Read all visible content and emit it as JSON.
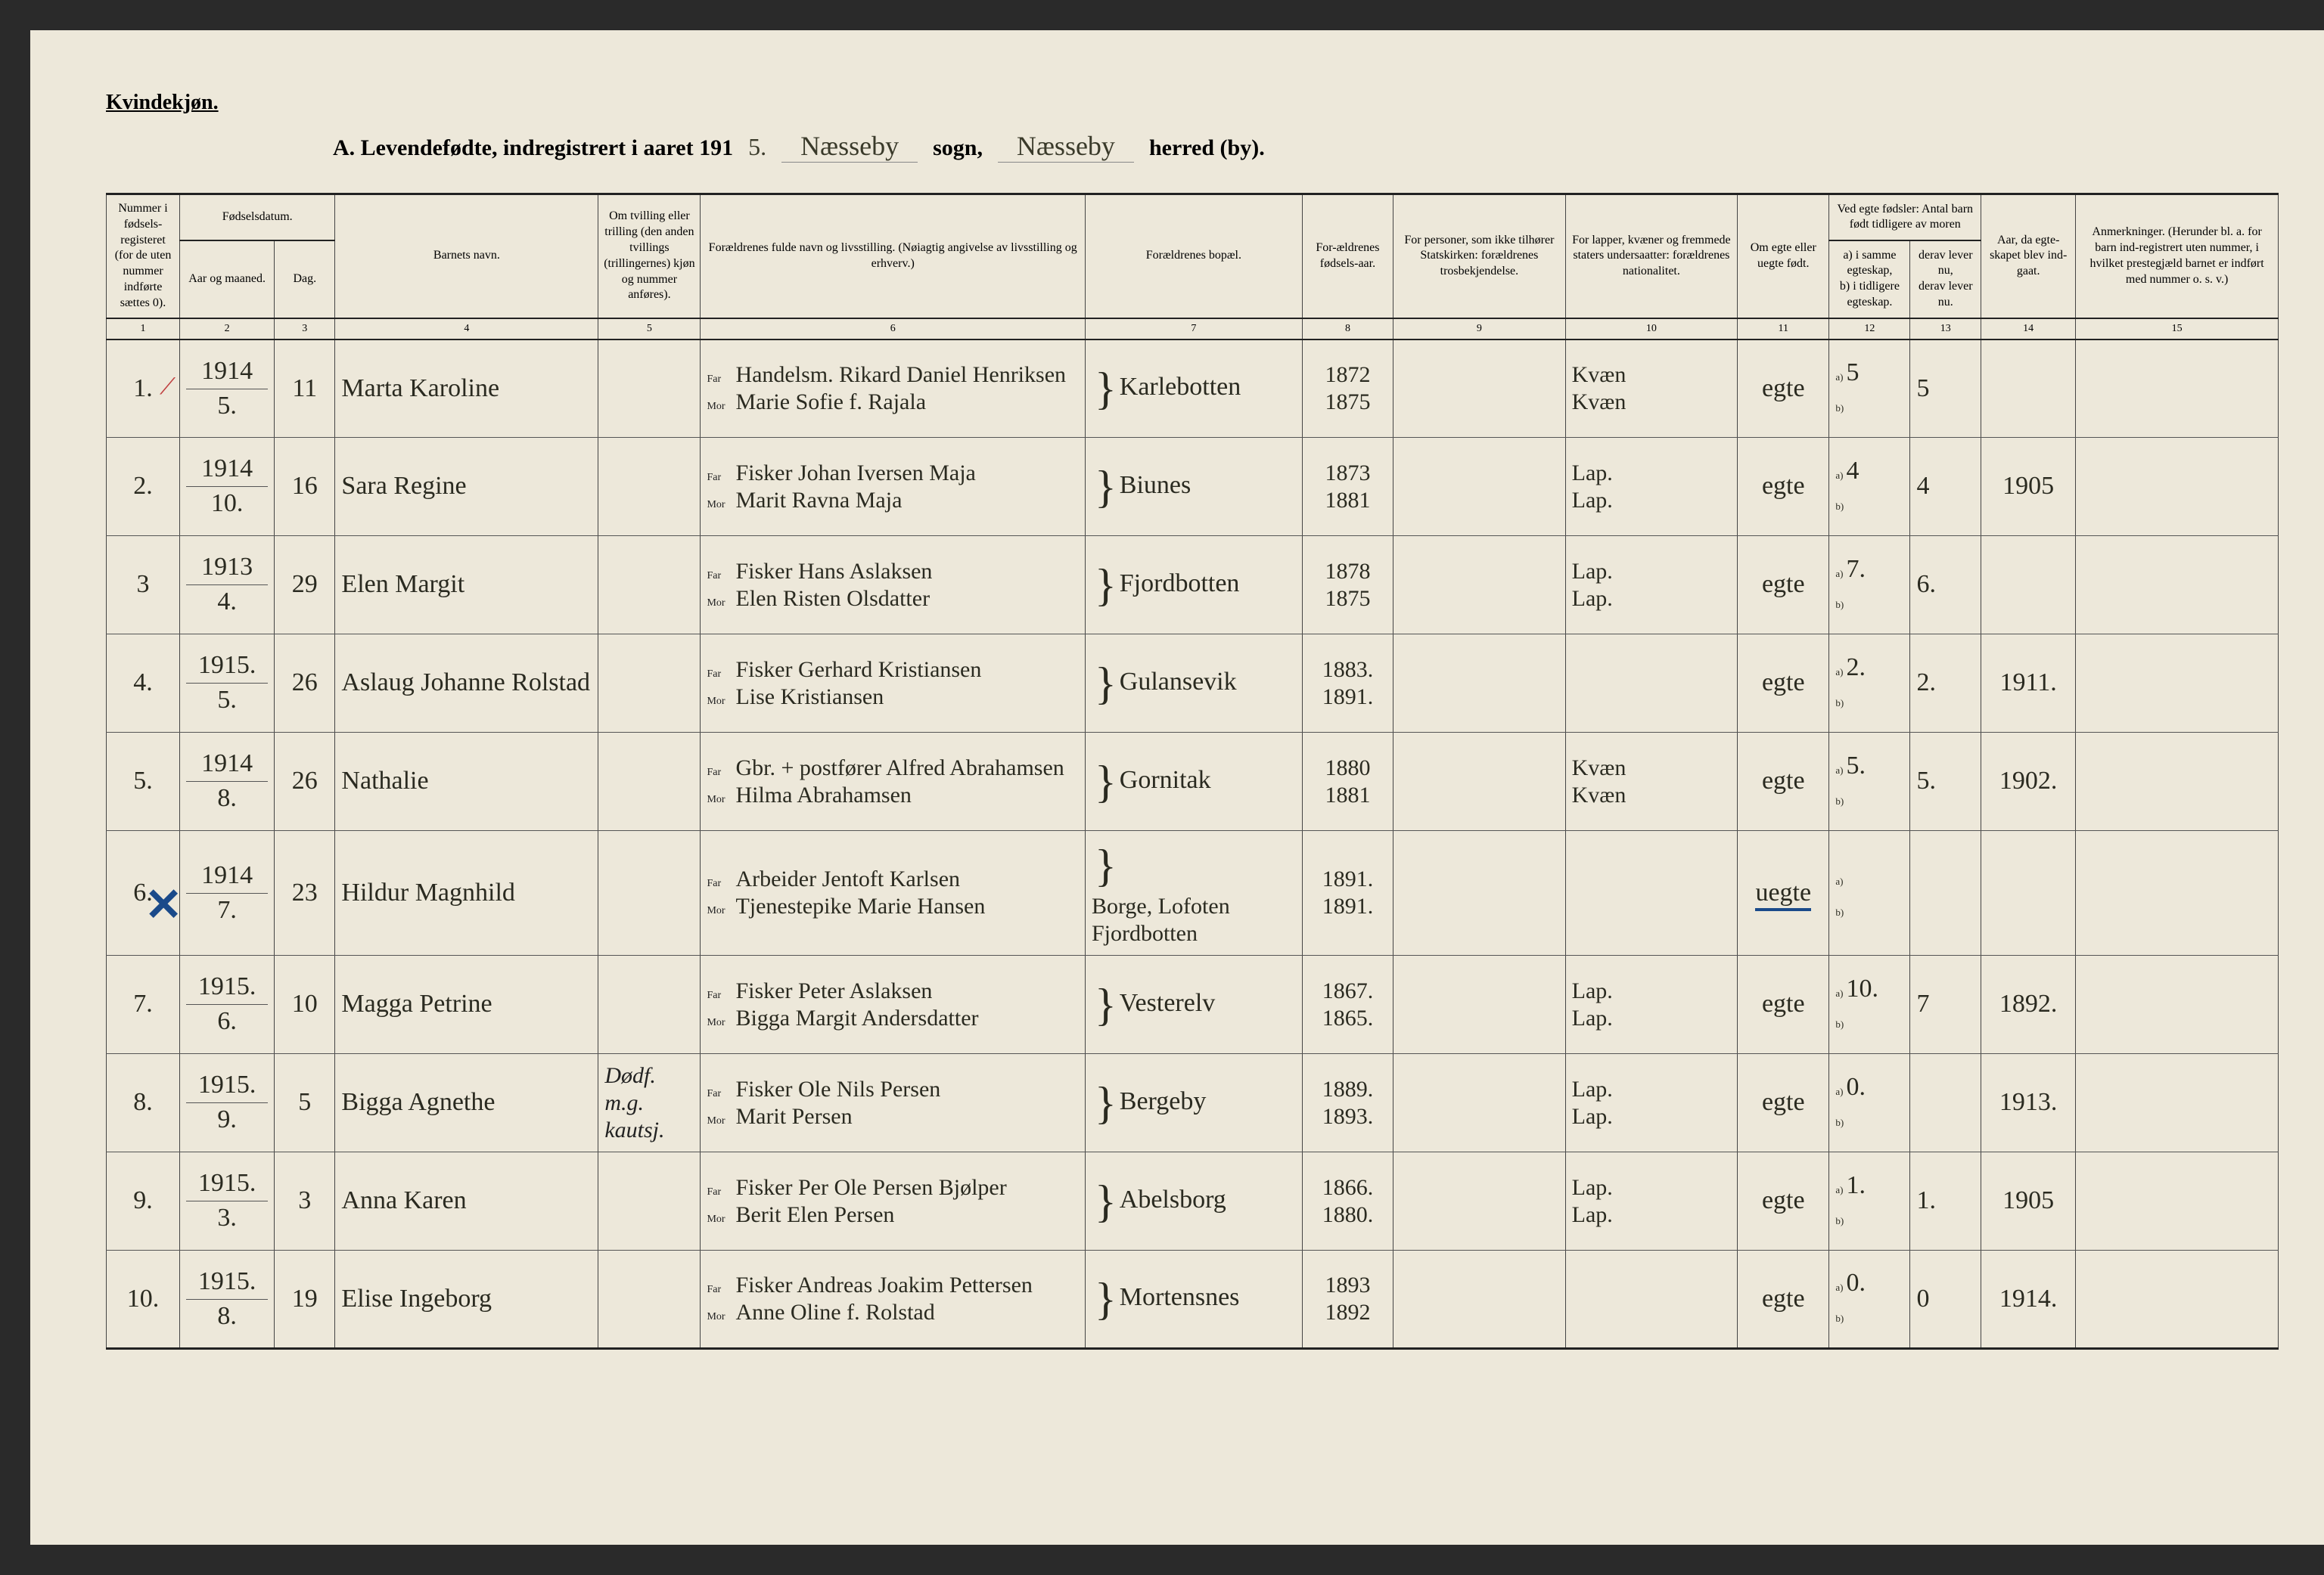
{
  "header": {
    "gender_label": "Kvindekjøn.",
    "title_prefix": "A.  Levendefødte, indregistrert i aaret 191",
    "year_suffix": "5.",
    "sogn_value": "Næsseby",
    "sogn_label": "sogn,",
    "herred_value": "Næsseby",
    "herred_label": "herred (by)."
  },
  "columns": {
    "c1": "Nummer i fødsels-registeret (for de uten nummer indførte sættes 0).",
    "c2a": "Fødselsdatum.",
    "c2b": "Aar og maaned.",
    "c3": "Dag.",
    "c4": "Barnets navn.",
    "c5": "Om tvilling eller trilling (den anden tvillings (trillingernes) kjøn og nummer anføres).",
    "c6": "Forældrenes fulde navn og livsstilling. (Nøiagtig angivelse av livsstilling og erhverv.)",
    "c7": "Forældrenes bopæl.",
    "c8": "For-ældrenes fødsels-aar.",
    "c9": "For personer, som ikke tilhører Statskirken: forældrenes trosbekjendelse.",
    "c10": "For lapper, kvæner og fremmede staters undersaatter: forældrenes nationalitet.",
    "c11": "Om egte eller uegte født.",
    "c12a": "Ved egte fødsler: Antal barn født tidligere av moren",
    "c12b": "a) i samme egteskap,",
    "c12c": "b) i tidligere egteskap.",
    "c13a": "derav lever nu,",
    "c13b": "derav lever nu.",
    "c14": "Aar, da egte-skapet blev ind-gaat.",
    "c15": "Anmerkninger. (Herunder bl. a. for barn ind-registrert uten nummer, i hvilket prestegjæld barnet er indført med nummer o. s. v.)",
    "far": "Far",
    "mor": "Mor"
  },
  "colnums": [
    "1",
    "2",
    "3",
    "4",
    "5",
    "6",
    "7",
    "8",
    "9",
    "10",
    "11",
    "12",
    "13",
    "14",
    "15"
  ],
  "rows": [
    {
      "num": "1.",
      "year": "1914",
      "month": "5.",
      "day": "11",
      "name": "Marta Karoline",
      "twin": "",
      "far": "Handelsm. Rikard Daniel Henriksen",
      "mor": "Marie Sofie f. Rajala",
      "residence": "Karlebotten",
      "fy": "1872",
      "my": "1875",
      "religion": "",
      "nat_f": "Kvæn",
      "nat_m": "Kvæn",
      "legit": "egte",
      "a12": "5",
      "b12": "",
      "a13": "5",
      "b13": "",
      "year_m": "",
      "remark": "",
      "red_mark": true
    },
    {
      "num": "2.",
      "year": "1914",
      "month": "10.",
      "day": "16",
      "name": "Sara Regine",
      "twin": "",
      "far": "Fisker Johan Iversen Maja",
      "mor": "Marit Ravna Maja",
      "residence": "Biunes",
      "fy": "1873",
      "my": "1881",
      "religion": "",
      "nat_f": "Lap.",
      "nat_m": "Lap.",
      "legit": "egte",
      "a12": "4",
      "b12": "",
      "a13": "4",
      "b13": "",
      "year_m": "1905",
      "remark": ""
    },
    {
      "num": "3",
      "year": "1913",
      "month": "4.",
      "day": "29",
      "name": "Elen Margit",
      "twin": "",
      "far": "Fisker Hans Aslaksen",
      "mor": "Elen Risten Olsdatter",
      "residence": "Fjordbotten",
      "fy": "1878",
      "my": "1875",
      "religion": "",
      "nat_f": "Lap.",
      "nat_m": "Lap.",
      "legit": "egte",
      "a12": "7.",
      "b12": "",
      "a13": "6.",
      "b13": "",
      "year_m": "",
      "remark": ""
    },
    {
      "num": "4.",
      "year": "1915.",
      "month": "5.",
      "day": "26",
      "name": "Aslaug Johanne Rolstad",
      "twin": "",
      "far": "Fisker Gerhard Kristiansen",
      "mor": "Lise Kristiansen",
      "residence": "Gulansevik",
      "fy": "1883.",
      "my": "1891.",
      "religion": "",
      "nat_f": "",
      "nat_m": "",
      "legit": "egte",
      "a12": "2.",
      "b12": "",
      "a13": "2.",
      "b13": "",
      "year_m": "1911.",
      "remark": ""
    },
    {
      "num": "5.",
      "year": "1914",
      "month": "8.",
      "day": "26",
      "name": "Nathalie",
      "twin": "",
      "far": "Gbr. + postfører Alfred Abrahamsen",
      "mor": "Hilma Abrahamsen",
      "residence": "Gornitak",
      "fy": "1880",
      "my": "1881",
      "religion": "",
      "nat_f": "Kvæn",
      "nat_m": "Kvæn",
      "legit": "egte",
      "a12": "5.",
      "b12": "",
      "a13": "5.",
      "b13": "",
      "year_m": "1902.",
      "remark": ""
    },
    {
      "num": "6.",
      "year": "1914",
      "month": "7.",
      "day": "23",
      "name": "Hildur Magnhild",
      "twin": "",
      "far": "Arbeider Jentoft Karlsen",
      "mor": "Tjenestepike Marie Hansen",
      "residence_f": "Borge, Lofoten",
      "residence_m": "Fjordbotten",
      "fy": "1891.",
      "my": "1891.",
      "religion": "",
      "nat_f": "",
      "nat_m": "",
      "legit": "uegte",
      "legit_underline": true,
      "a12": "",
      "b12": "",
      "a13": "",
      "b13": "",
      "year_m": "",
      "remark": "",
      "x_mark": true
    },
    {
      "num": "7.",
      "year": "1915.",
      "month": "6.",
      "day": "10",
      "name": "Magga Petrine",
      "twin": "",
      "far": "Fisker Peter Aslaksen",
      "mor": "Bigga Margit Andersdatter",
      "residence": "Vesterelv",
      "fy": "1867.",
      "my": "1865.",
      "religion": "",
      "nat_f": "Lap.",
      "nat_m": "Lap.",
      "legit": "egte",
      "a12": "10.",
      "b12": "",
      "a13": "7",
      "b13": "",
      "year_m": "1892.",
      "remark": ""
    },
    {
      "num": "8.",
      "year": "1915.",
      "month": "9.",
      "day": "5",
      "name": "Bigga Agnethe",
      "twin": "Dødf. m.g. kautsj.",
      "far": "Fisker Ole Nils Persen",
      "mor": "Marit Persen",
      "residence": "Bergeby",
      "fy": "1889.",
      "my": "1893.",
      "religion": "",
      "nat_f": "Lap.",
      "nat_m": "Lap.",
      "legit": "egte",
      "a12": "0.",
      "b12": "",
      "a13": "",
      "b13": "",
      "year_m": "1913.",
      "remark": ""
    },
    {
      "num": "9.",
      "year": "1915.",
      "month": "3.",
      "day": "3",
      "name": "Anna Karen",
      "twin": "",
      "far": "Fisker Per Ole Persen Bjølper",
      "mor": "Berit Elen Persen",
      "residence": "Abelsborg",
      "fy": "1866.",
      "my": "1880.",
      "religion": "",
      "nat_f": "Lap.",
      "nat_m": "Lap.",
      "legit": "egte",
      "a12": "1.",
      "b12": "",
      "a13": "1.",
      "b13": "",
      "year_m": "1905",
      "remark": ""
    },
    {
      "num": "10.",
      "year": "1915.",
      "month": "8.",
      "day": "19",
      "name": "Elise Ingeborg",
      "twin": "",
      "far": "Fisker Andreas Joakim Pettersen",
      "mor": "Anne Oline f. Rolstad",
      "residence": "Mortensnes",
      "fy": "1893",
      "my": "1892",
      "religion": "",
      "nat_f": "",
      "nat_m": "",
      "legit": "egte",
      "a12": "0.",
      "b12": "",
      "a13": "0",
      "b13": "",
      "year_m": "1914.",
      "remark": ""
    }
  ]
}
